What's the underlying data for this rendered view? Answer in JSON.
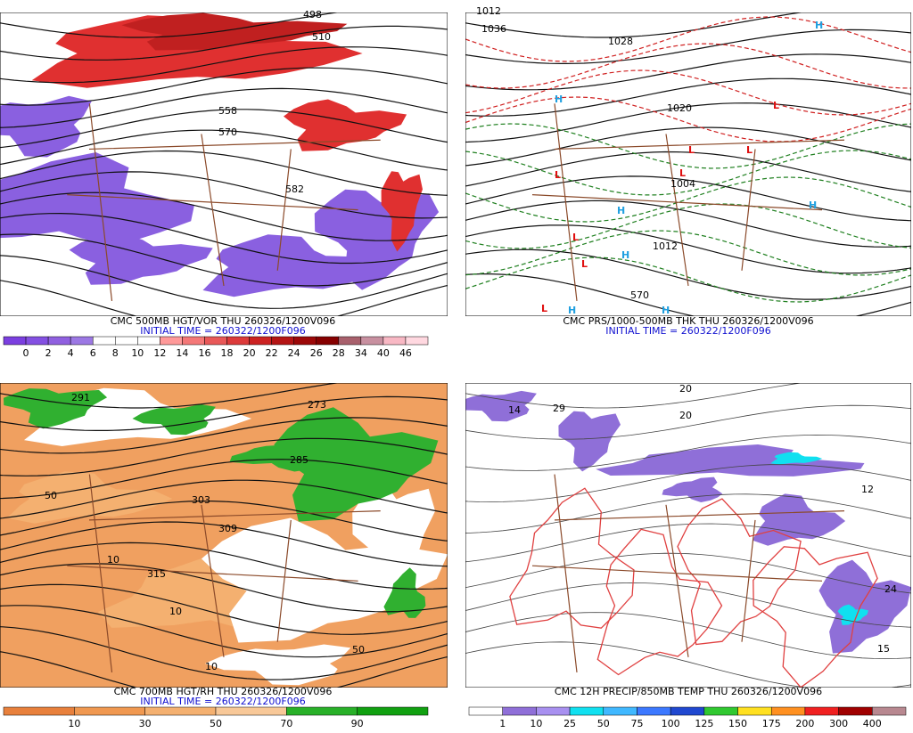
{
  "panels": [
    {
      "caption": "CMC 500MB HGT/VOR THU 260326/1200V096",
      "initial_time": "INITIAL TIME = 260322/1200F096",
      "colorbar": {
        "labels": [
          "0",
          "2",
          "4",
          "6",
          "8",
          "10",
          "12",
          "14",
          "16",
          "18",
          "20",
          "22",
          "24",
          "26",
          "28",
          "34",
          "40",
          "46"
        ],
        "colors": [
          "#7b3fe0",
          "#8450e2",
          "#9060e0",
          "#9c78e4",
          "#ffffff",
          "#ffffff",
          "#ffffff",
          "#ff9a9a",
          "#f47878",
          "#e85858",
          "#dc3a3a",
          "#cc2222",
          "#b41414",
          "#9c0808",
          "#860000",
          "#a8606c",
          "#c890a0",
          "#f8b8c4",
          "#ffd8e0"
        ]
      },
      "map_labels": [
        "498",
        "510",
        "558",
        "570",
        "582"
      ]
    },
    {
      "caption": "CMC PRS/1000-500MB THK THU 260326/1200V096",
      "initial_time": "INITIAL TIME = 260322/1200F096",
      "colorbar": null,
      "map_labels": [
        "1012",
        "1036",
        "1028",
        "1020",
        "1004",
        "1012",
        "570",
        "H",
        "H",
        "H",
        "H",
        "H",
        "H",
        "H",
        "L",
        "L",
        "L",
        "L",
        "L",
        "L",
        "L",
        "L"
      ]
    },
    {
      "caption": "CMC 700MB HGT/RH THU 260326/1200V096",
      "initial_time": "INITIAL TIME = 260322/1200F096",
      "colorbar": {
        "labels": [
          "10",
          "30",
          "50",
          "70",
          "90"
        ],
        "colors": [
          "#e8803c",
          "#f09850",
          "#f4b070",
          "#f8c898",
          "#28b028",
          "#10a010"
        ]
      },
      "map_labels": [
        "291",
        "273",
        "285",
        "303",
        "309",
        "315",
        "10",
        "10",
        "10",
        "50",
        "50"
      ]
    },
    {
      "caption": "CMC 12H PRECIP/850MB TEMP THU 260326/1200V096",
      "initial_time": null,
      "colorbar": {
        "labels": [
          "1",
          "10",
          "25",
          "50",
          "75",
          "100",
          "125",
          "150",
          "175",
          "200",
          "300",
          "400"
        ],
        "colors": [
          "#ffffff",
          "#8f6fd8",
          "#a890f0",
          "#10e0f0",
          "#40b8ff",
          "#3c78ff",
          "#2048d0",
          "#30c830",
          "#ffe020",
          "#ff9020",
          "#f02020",
          "#a00000",
          "#b88890"
        ]
      },
      "map_labels": [
        "14",
        "29",
        "20",
        "20",
        "24",
        "15",
        "12"
      ]
    }
  ]
}
